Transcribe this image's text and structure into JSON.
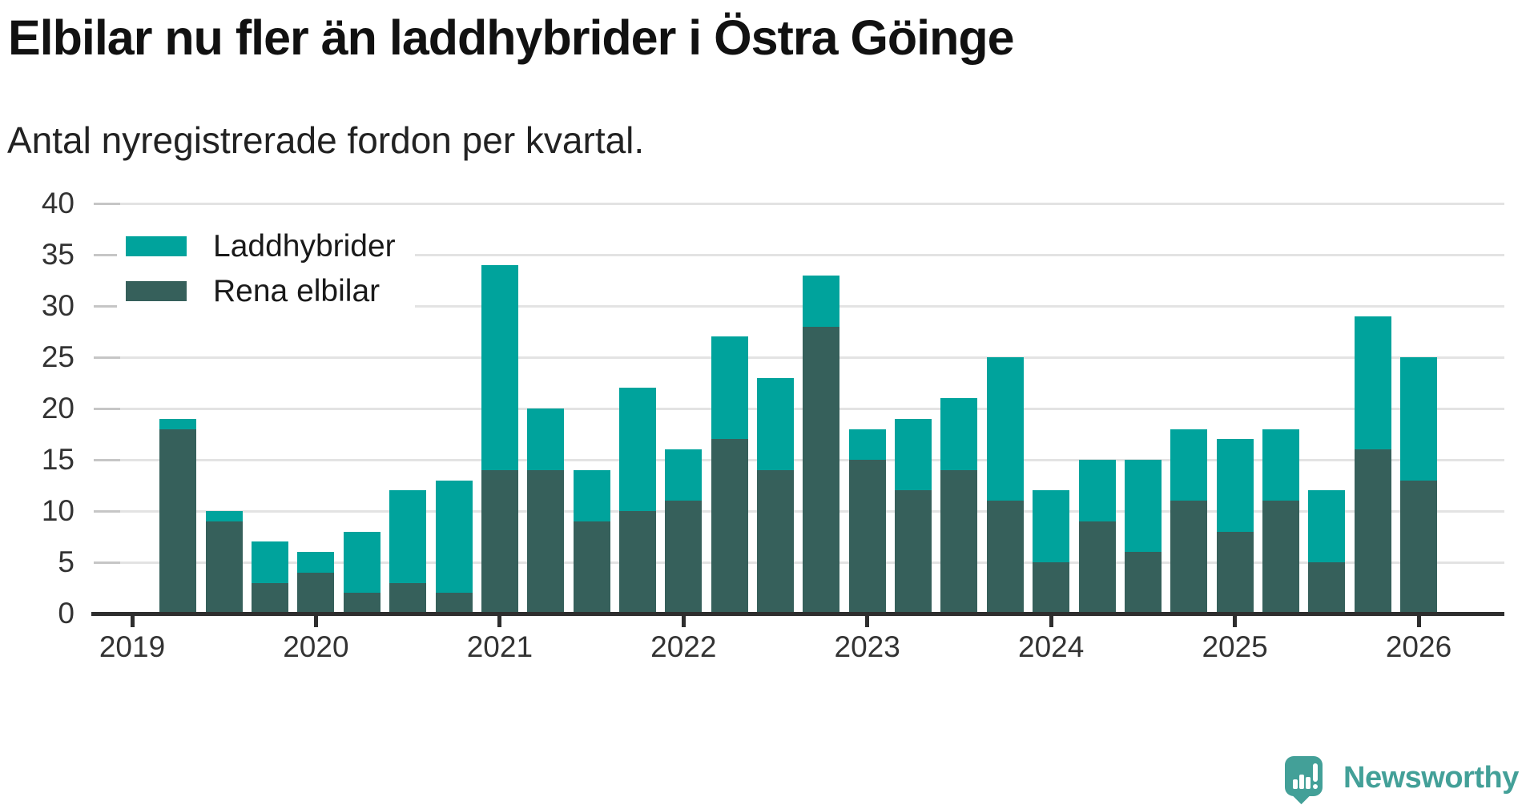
{
  "title": "Elbilar nu fler än laddhybrider i Östra Göinge",
  "subtitle": "Antal nyregistrerade fordon per kvartal.",
  "colors": {
    "laddhybrider": "#00a39c",
    "rena_elbilar": "#36605b",
    "gridline": "#e3e3e3",
    "grid_dash": "#c6c6c6",
    "axis": "#2e2e2e",
    "title_text": "#111111",
    "subtitle_text": "#222222",
    "tick_text": "#333333",
    "logo_teal": "#43a098"
  },
  "legend": {
    "items": [
      {
        "label": "Laddhybrider",
        "color_key": "laddhybrider"
      },
      {
        "label": "Rena elbilar",
        "color_key": "rena_elbilar"
      }
    ]
  },
  "y_axis": {
    "ticks": [
      0,
      5,
      10,
      15,
      20,
      25,
      30,
      35,
      40
    ]
  },
  "x_axis": {
    "year_labels": [
      "2019",
      "2020",
      "2021",
      "2022",
      "2023",
      "2024",
      "2025",
      "2026"
    ]
  },
  "chart_data": {
    "type": "bar",
    "stacked": true,
    "title": "Elbilar nu fler än laddhybrider i Östra Göinge",
    "subtitle": "Antal nyregistrerade fordon per kvartal.",
    "xlabel": "",
    "ylabel": "",
    "ylim": [
      0,
      40
    ],
    "grid": "horizontal",
    "legend_position": "top-left-inside",
    "categories": [
      "2019 Q2",
      "2019 Q3",
      "2019 Q4",
      "2020 Q1",
      "2020 Q2",
      "2020 Q3",
      "2020 Q4",
      "2021 Q1",
      "2021 Q2",
      "2021 Q3",
      "2021 Q4",
      "2022 Q1",
      "2022 Q2",
      "2022 Q3",
      "2022 Q4",
      "2023 Q1",
      "2023 Q2",
      "2023 Q3",
      "2023 Q4",
      "2024 Q1",
      "2024 Q2",
      "2024 Q3",
      "2024 Q4",
      "2025 Q1",
      "2025 Q2",
      "2025 Q3",
      "2025 Q4",
      "2026 Q1"
    ],
    "series": [
      {
        "name": "Rena elbilar",
        "values": [
          18,
          9,
          3,
          4,
          2,
          3,
          2,
          14,
          14,
          9,
          10,
          11,
          17,
          14,
          28,
          15,
          12,
          14,
          11,
          5,
          9,
          6,
          11,
          8,
          11,
          5,
          16,
          13
        ]
      },
      {
        "name": "Laddhybrider",
        "values": [
          1,
          1,
          4,
          2,
          6,
          9,
          11,
          20,
          6,
          5,
          12,
          5,
          10,
          9,
          5,
          3,
          7,
          7,
          14,
          7,
          6,
          9,
          7,
          9,
          7,
          7,
          13,
          12
        ]
      }
    ],
    "totals": [
      19,
      10,
      7,
      6,
      8,
      12,
      13,
      34,
      20,
      14,
      22,
      16,
      27,
      23,
      33,
      18,
      19,
      21,
      25,
      12,
      15,
      15,
      18,
      17,
      18,
      12,
      29,
      25
    ]
  },
  "branding": {
    "logo_text": "Newsworthy",
    "logo_icon": "speech-bubble-bar-chart-icon"
  }
}
